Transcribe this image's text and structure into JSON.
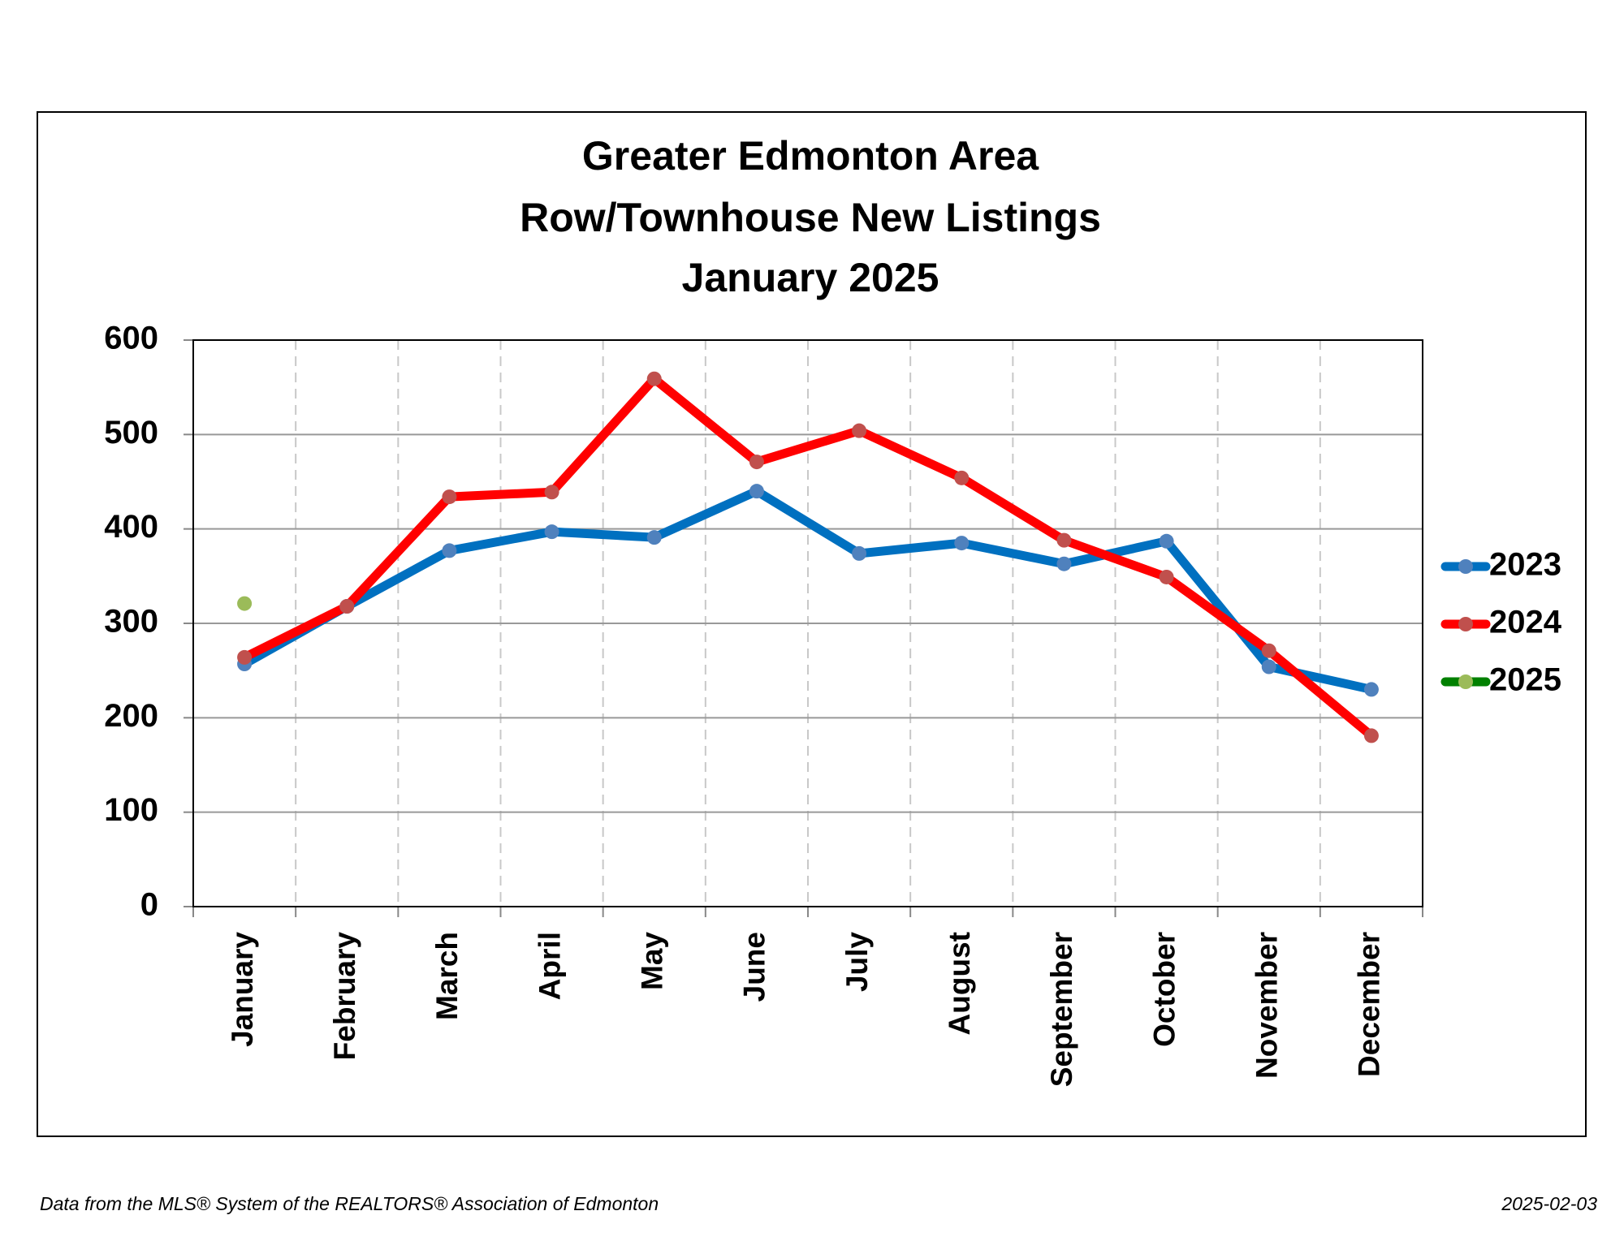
{
  "chart_data": {
    "type": "line",
    "title": [
      "Greater Edmonton Area",
      "Row/Townhouse New Listings",
      "January 2025"
    ],
    "categories": [
      "January",
      "February",
      "March",
      "April",
      "May",
      "June",
      "July",
      "August",
      "September",
      "October",
      "November",
      "December"
    ],
    "series": [
      {
        "name": "2023",
        "color": "#0070c0",
        "marker_color": "#4f81bd",
        "values": [
          257,
          318,
          377,
          397,
          391,
          440,
          374,
          385,
          363,
          387,
          254,
          230
        ]
      },
      {
        "name": "2024",
        "color": "#ff0000",
        "marker_color": "#c0504d",
        "values": [
          264,
          318,
          434,
          439,
          559,
          471,
          504,
          454,
          388,
          349,
          271,
          181
        ]
      },
      {
        "name": "2025",
        "color": "#008000",
        "marker_color": "#9bbb59",
        "values": [
          321,
          null,
          null,
          null,
          null,
          null,
          null,
          null,
          null,
          null,
          null,
          null
        ]
      }
    ],
    "ylim": [
      0,
      600
    ],
    "yticks": [
      0,
      100,
      200,
      300,
      400,
      500,
      600
    ],
    "grid": true,
    "legend": "right",
    "source": "Data from the MLS® System of the REALTORS® Association of Edmonton",
    "date": "2025-02-03"
  }
}
